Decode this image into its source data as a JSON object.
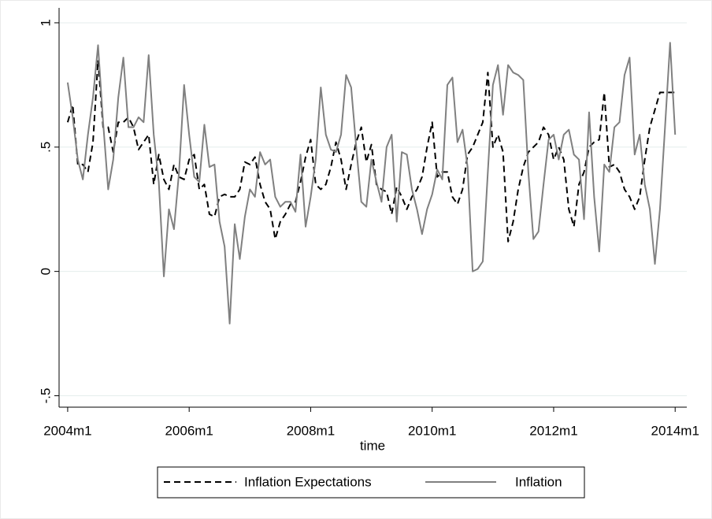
{
  "chart_data": {
    "type": "line",
    "x_label": "time",
    "x": [
      528,
      529,
      530,
      531,
      532,
      533,
      534,
      535,
      536,
      537,
      538,
      539,
      540,
      541,
      542,
      543,
      544,
      545,
      546,
      547,
      548,
      549,
      550,
      551,
      552,
      553,
      554,
      555,
      556,
      557,
      558,
      559,
      560,
      561,
      562,
      563,
      564,
      565,
      566,
      567,
      568,
      569,
      570,
      571,
      572,
      573,
      574,
      575,
      576,
      577,
      578,
      579,
      580,
      581,
      582,
      583,
      584,
      585,
      586,
      587,
      588,
      589,
      590,
      591,
      592,
      593,
      594,
      595,
      596,
      597,
      598,
      599,
      600,
      601,
      602,
      603,
      604,
      605,
      606,
      607,
      608,
      609,
      610,
      611,
      612,
      613,
      614,
      615,
      616,
      617,
      618,
      619,
      620,
      621,
      622,
      623,
      624,
      625,
      626,
      627,
      628,
      629,
      630,
      631,
      632,
      633,
      634,
      635,
      636,
      637,
      638,
      639,
      640,
      641,
      642,
      643,
      644,
      645,
      646,
      647,
      648
    ],
    "series": [
      {
        "name": "Inflation Expectations",
        "color": "#000000",
        "dash": true,
        "values": [
          0.6,
          0.67,
          0.43,
          0.43,
          0.4,
          0.52,
          0.85,
          0.58,
          0.58,
          0.48,
          0.6,
          0.6,
          0.62,
          0.58,
          0.49,
          0.52,
          0.55,
          0.35,
          0.47,
          0.37,
          0.33,
          0.43,
          0.38,
          0.37,
          0.45,
          0.47,
          0.33,
          0.35,
          0.23,
          0.22,
          0.3,
          0.31,
          0.3,
          0.3,
          0.33,
          0.44,
          0.43,
          0.46,
          0.35,
          0.28,
          0.25,
          0.13,
          0.2,
          0.23,
          0.27,
          0.28,
          0.36,
          0.46,
          0.53,
          0.35,
          0.33,
          0.35,
          0.42,
          0.52,
          0.45,
          0.33,
          0.43,
          0.52,
          0.58,
          0.44,
          0.51,
          0.35,
          0.33,
          0.32,
          0.23,
          0.34,
          0.3,
          0.25,
          0.3,
          0.33,
          0.38,
          0.5,
          0.6,
          0.38,
          0.4,
          0.4,
          0.3,
          0.27,
          0.33,
          0.47,
          0.5,
          0.55,
          0.6,
          0.8,
          0.5,
          0.55,
          0.48,
          0.12,
          0.2,
          0.33,
          0.42,
          0.48,
          0.5,
          0.52,
          0.58,
          0.55,
          0.45,
          0.5,
          0.45,
          0.25,
          0.18,
          0.35,
          0.4,
          0.5,
          0.52,
          0.53,
          0.72,
          0.42,
          0.43,
          0.4,
          0.33,
          0.3,
          0.25,
          0.3,
          0.45,
          0.58,
          0.65,
          0.72,
          0.72,
          0.72,
          0.72
        ]
      },
      {
        "name": "Inflation",
        "color": "#808080",
        "dash": false,
        "values": [
          0.76,
          0.62,
          0.45,
          0.37,
          0.55,
          0.7,
          0.91,
          0.6,
          0.33,
          0.45,
          0.7,
          0.86,
          0.58,
          0.58,
          0.62,
          0.6,
          0.87,
          0.55,
          0.36,
          -0.02,
          0.25,
          0.17,
          0.4,
          0.75,
          0.55,
          0.38,
          0.36,
          0.59,
          0.42,
          0.43,
          0.2,
          0.1,
          -0.21,
          0.19,
          0.05,
          0.22,
          0.33,
          0.3,
          0.48,
          0.43,
          0.45,
          0.3,
          0.26,
          0.28,
          0.28,
          0.24,
          0.47,
          0.18,
          0.3,
          0.45,
          0.74,
          0.55,
          0.49,
          0.48,
          0.55,
          0.79,
          0.74,
          0.5,
          0.28,
          0.26,
          0.45,
          0.36,
          0.28,
          0.5,
          0.55,
          0.2,
          0.48,
          0.47,
          0.33,
          0.25,
          0.15,
          0.25,
          0.31,
          0.41,
          0.37,
          0.75,
          0.78,
          0.52,
          0.57,
          0.42,
          0.0,
          0.01,
          0.04,
          0.4,
          0.75,
          0.83,
          0.63,
          0.83,
          0.8,
          0.79,
          0.77,
          0.4,
          0.13,
          0.16,
          0.35,
          0.53,
          0.55,
          0.45,
          0.55,
          0.57,
          0.47,
          0.45,
          0.21,
          0.64,
          0.3,
          0.08,
          0.43,
          0.4,
          0.58,
          0.6,
          0.79,
          0.86,
          0.47,
          0.55,
          0.35,
          0.25,
          0.03,
          0.25,
          0.58,
          0.92,
          0.55
        ]
      }
    ],
    "xlim": [
      526.3,
      650.3
    ],
    "xticks": [
      {
        "value": 528,
        "label": "2004m1"
      },
      {
        "value": 552,
        "label": "2006m1"
      },
      {
        "value": 576,
        "label": "2008m1"
      },
      {
        "value": 600,
        "label": "2010m1"
      },
      {
        "value": 624,
        "label": "2012m1"
      },
      {
        "value": 648,
        "label": "2014m1"
      }
    ],
    "ylim": [
      -0.546,
      1.06
    ],
    "yticks": [
      {
        "value": -0.5,
        "label": "-.5"
      },
      0,
      {
        "value": 0.5,
        "label": ".5"
      },
      1
    ],
    "grid": true,
    "legend": "bottom"
  }
}
